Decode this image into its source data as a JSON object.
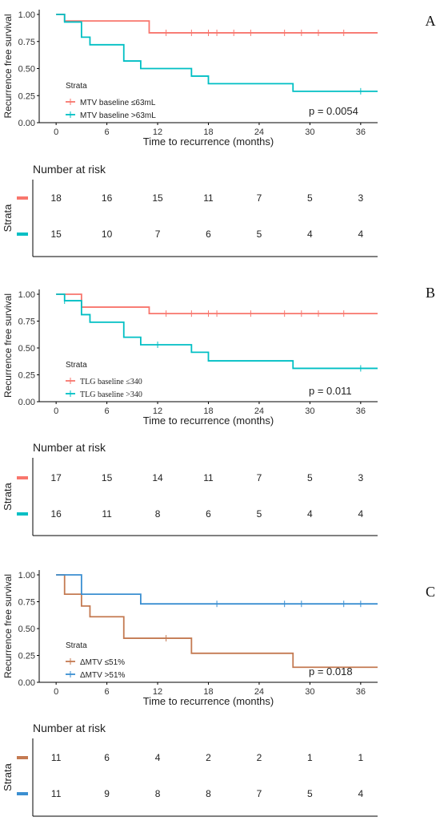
{
  "chart_data": [
    {
      "type": "line",
      "chart_kind": "kaplan-meier",
      "panel": "A",
      "xlabel": "Time to recurrence (months)",
      "ylabel": "Recurrence free survival",
      "xlim": [
        -2,
        38
      ],
      "ylim": [
        0,
        1
      ],
      "xticks": [
        0,
        6,
        12,
        18,
        24,
        30,
        36
      ],
      "yticks": [
        0,
        0.25,
        0.5,
        0.75,
        1
      ],
      "ytick_labels": [
        "0.00",
        "0.25",
        "0.50",
        "0.75",
        "1.00"
      ],
      "p_value": "p = 0.0054",
      "legend_title": "Strata",
      "legend_position": "bottom-left",
      "risk_table_title": "Number at risk",
      "risk_table_ylabel": "Strata",
      "series": [
        {
          "name": "MTV baseline ≤63mL",
          "color": "#f8766d",
          "steps": [
            [
              0,
              1.0
            ],
            [
              1,
              0.94
            ],
            [
              11,
              0.83
            ]
          ],
          "end_x": 38,
          "censor_x": [
            13,
            16,
            18,
            19,
            21,
            23,
            27,
            29,
            31,
            34
          ],
          "at_risk": [
            18,
            16,
            15,
            11,
            7,
            5,
            3
          ]
        },
        {
          "name": "MTV baseline >63mL",
          "color": "#00bfc4",
          "steps": [
            [
              0,
              1.0
            ],
            [
              1,
              0.93
            ],
            [
              3,
              0.79
            ],
            [
              4,
              0.72
            ],
            [
              8,
              0.57
            ],
            [
              10,
              0.5
            ],
            [
              16,
              0.43
            ],
            [
              18,
              0.36
            ],
            [
              28,
              0.29
            ]
          ],
          "end_x": 38,
          "censor_x": [
            36
          ],
          "at_risk": [
            15,
            10,
            7,
            6,
            5,
            4,
            4
          ]
        }
      ]
    },
    {
      "type": "line",
      "chart_kind": "kaplan-meier",
      "panel": "B",
      "xlabel": "Time to recurrence (months)",
      "ylabel": "Recurrence free survival",
      "xlim": [
        -2,
        38
      ],
      "ylim": [
        0,
        1
      ],
      "xticks": [
        0,
        6,
        12,
        18,
        24,
        30,
        36
      ],
      "yticks": [
        0,
        0.25,
        0.5,
        0.75,
        1
      ],
      "ytick_labels": [
        "0.00",
        "0.25",
        "0.50",
        "0.75",
        "1.00"
      ],
      "p_value": "p = 0.011",
      "legend_title": "Strata",
      "legend_position": "bottom-left",
      "risk_table_title": "Number at risk",
      "risk_table_ylabel": "Strata",
      "series": [
        {
          "name": "TLG baseline ≤340",
          "color": "#f8766d",
          "steps": [
            [
              0,
              1.0
            ],
            [
              3,
              0.88
            ],
            [
              11,
              0.82
            ]
          ],
          "end_x": 38,
          "censor_x": [
            13,
            16,
            18,
            19,
            23,
            27,
            29,
            31,
            34
          ],
          "at_risk": [
            17,
            15,
            14,
            11,
            7,
            5,
            3
          ]
        },
        {
          "name": "TLG baseline >340",
          "color": "#00bfc4",
          "steps": [
            [
              0,
              1.0
            ],
            [
              1,
              0.94
            ],
            [
              3,
              0.81
            ],
            [
              4,
              0.74
            ],
            [
              8,
              0.6
            ],
            [
              10,
              0.53
            ],
            [
              16,
              0.46
            ],
            [
              18,
              0.38
            ],
            [
              28,
              0.31
            ]
          ],
          "end_x": 38,
          "censor_x": [
            1,
            12,
            36
          ],
          "at_risk": [
            16,
            11,
            8,
            6,
            5,
            4,
            4
          ]
        }
      ]
    },
    {
      "type": "line",
      "chart_kind": "kaplan-meier",
      "panel": "C",
      "xlabel": "Time to recurrence (months)",
      "ylabel": "Recurrence free survival",
      "xlim": [
        -2,
        38
      ],
      "ylim": [
        0,
        1
      ],
      "xticks": [
        0,
        6,
        12,
        18,
        24,
        30,
        36
      ],
      "yticks": [
        0,
        0.25,
        0.5,
        0.75,
        1
      ],
      "ytick_labels": [
        "0.00",
        "0.25",
        "0.50",
        "0.75",
        "1.00"
      ],
      "p_value": "p = 0.018",
      "legend_title": "Strata",
      "legend_position": "bottom-left",
      "risk_table_title": "Number at risk",
      "risk_table_ylabel": "Strata",
      "series": [
        {
          "name": "ΔMTV ≤51%",
          "color": "#c47a52",
          "steps": [
            [
              0,
              1.0
            ],
            [
              1,
              0.82
            ],
            [
              3,
              0.71
            ],
            [
              4,
              0.61
            ],
            [
              8,
              0.41
            ],
            [
              16,
              0.27
            ],
            [
              28,
              0.14
            ]
          ],
          "end_x": 38,
          "censor_x": [
            13
          ],
          "at_risk": [
            11,
            6,
            4,
            2,
            2,
            1,
            1
          ]
        },
        {
          "name": "ΔMTV >51%",
          "color": "#3b8fd1",
          "steps": [
            [
              0,
              1.0
            ],
            [
              3,
              0.82
            ],
            [
              10,
              0.73
            ]
          ],
          "end_x": 38,
          "censor_x": [
            19,
            27,
            29,
            34,
            36
          ],
          "at_risk": [
            11,
            9,
            8,
            8,
            7,
            5,
            4
          ]
        }
      ]
    }
  ]
}
